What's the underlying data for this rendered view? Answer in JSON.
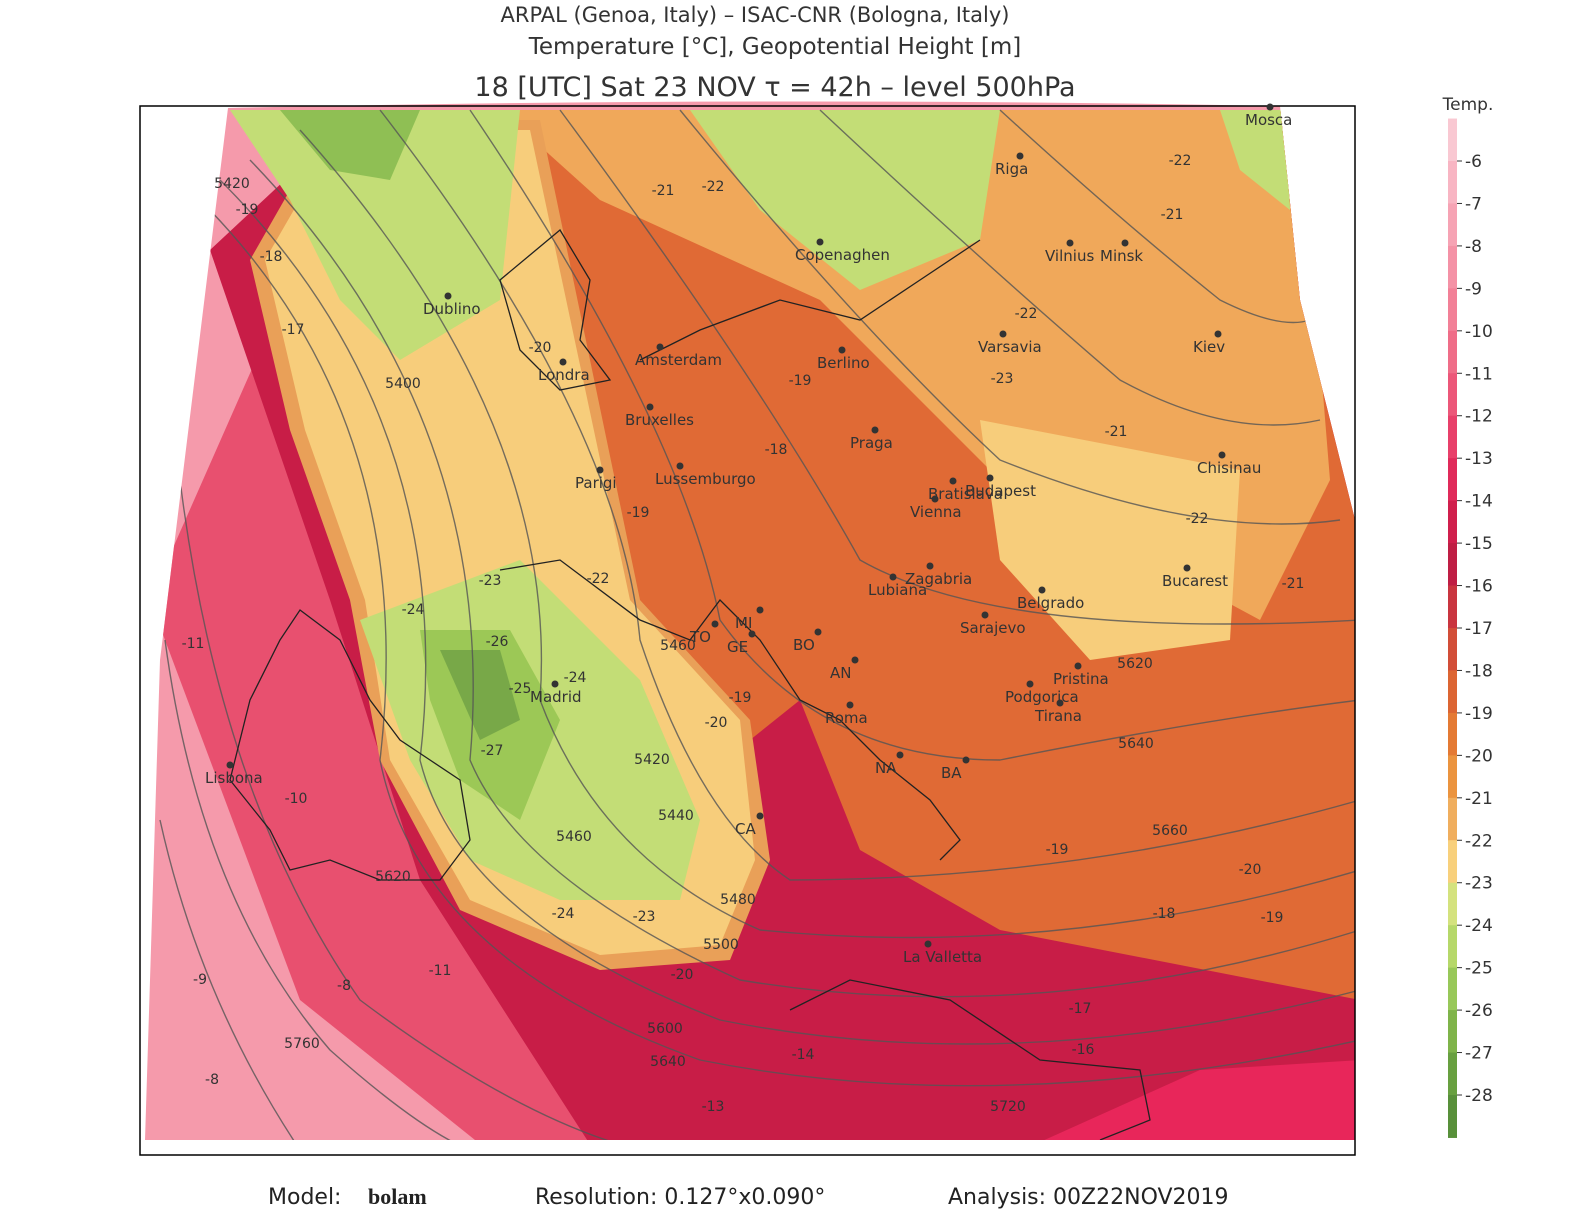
{
  "header": {
    "line1": "ARPAL (Genoa, Italy)  –  ISAC-CNR (Bologna, Italy)",
    "line2": "Temperature [°C], Geopotential Height [m]",
    "line3": "18 [UTC] Sat 23 NOV   τ = 42h  –   level 500hPa"
  },
  "legend": {
    "title": "Temp.",
    "ticks": [
      -6,
      -7,
      -8,
      -9,
      -10,
      -11,
      -12,
      -13,
      -14,
      -15,
      -16,
      -17,
      -18,
      -19,
      -20,
      -21,
      -22,
      -23,
      -24,
      -25,
      -26,
      -27,
      -28
    ],
    "colors": [
      "#f9c8d2",
      "#f8b5c3",
      "#f6a3b4",
      "#f492a6",
      "#f28097",
      "#ef6d88",
      "#ec5779",
      "#e8406a",
      "#e02a5a",
      "#d01f4c",
      "#bf1e44",
      "#c9353f",
      "#d24e38",
      "#dc6533",
      "#e47a34",
      "#eb943f",
      "#f0ae5e",
      "#f8d07c",
      "#d4e27e",
      "#b6d86a",
      "#98c859",
      "#7fb44a",
      "#68a040",
      "#58903a"
    ]
  },
  "cities": [
    "Mosca",
    "Riga",
    "Copenaghen",
    "Vilnius",
    "Minsk",
    "Dublino",
    "Varsavia",
    "Kiev",
    "Londra",
    "Amsterdam",
    "Berlino",
    "Bruxelles",
    "Praga",
    "Chisinau",
    "Parigi",
    "Lussemburgo",
    "Bratislava",
    "Vienna",
    "Budapest",
    "Zagabria",
    "Bucarest",
    "Belgrado",
    "Lubiana",
    "Sarajevo",
    "Madrid",
    "Podgorica",
    "Pristina",
    "Tirana",
    "Roma",
    "Lisbona",
    "La Valletta",
    "TO",
    "MI",
    "GE",
    "BO",
    "AN",
    "NA",
    "BA",
    "CA"
  ],
  "contour_labels": [
    5420,
    -19,
    -18,
    -17,
    5400,
    -20,
    -21,
    -22,
    -19,
    -18,
    -19,
    -22,
    -23,
    -24,
    -26,
    -24,
    -25,
    -27,
    5420,
    5440,
    5460,
    5460,
    -20,
    -19,
    5620,
    -11,
    -10,
    -9,
    -8,
    5760,
    -8,
    -13,
    -14,
    5600,
    5640,
    5720,
    -17,
    -18,
    -16,
    -19,
    -20,
    -21,
    -22,
    -21,
    -22,
    -23,
    -22,
    -21,
    5620,
    5640,
    5660,
    -19,
    5500,
    5480,
    -20,
    -23,
    -24,
    -11
  ],
  "footer": {
    "model_label": "Model:",
    "model": "bolam",
    "resolution": "Resolution: 0.127°x0.090°",
    "analysis": "Analysis: 00Z22NOV2019"
  }
}
